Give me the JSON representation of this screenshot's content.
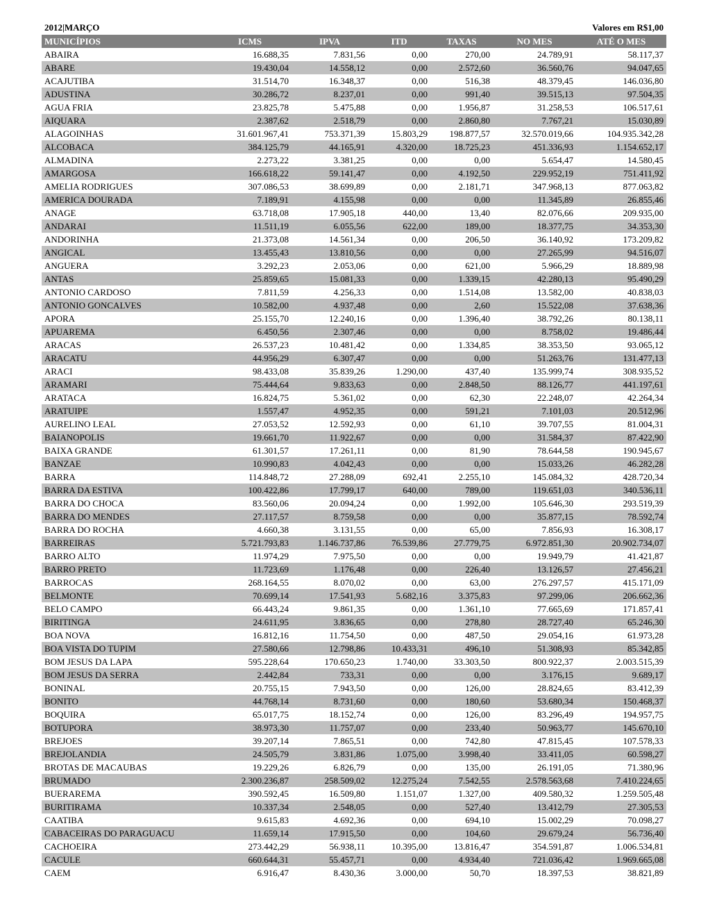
{
  "header": {
    "period": "2012|MARÇO",
    "currency": "Valores em R$1,00"
  },
  "columns": [
    {
      "key": "municipio",
      "label": "MUNICÍPIOS",
      "class": "mun"
    },
    {
      "key": "icms",
      "label": "ICMS",
      "class": "num"
    },
    {
      "key": "ipva",
      "label": "IPVA",
      "class": "num"
    },
    {
      "key": "itd",
      "label": "ITD",
      "class": "num"
    },
    {
      "key": "taxas",
      "label": "TAXAS",
      "class": "num"
    },
    {
      "key": "nomes",
      "label": "NO   MES",
      "class": "num"
    },
    {
      "key": "ate",
      "label": "ATÉ O MES",
      "class": "num"
    }
  ],
  "style": {
    "header_bg": "#808080",
    "header_fg": "#ffffff",
    "row_alt_bg": "#c0c0c0",
    "row_bg": "#ffffff",
    "font_family": "Times New Roman",
    "font_size_pt": 10
  },
  "rows": [
    [
      "ABAIRA",
      "16.688,35",
      "7.831,56",
      "0,00",
      "270,00",
      "24.789,91",
      "58.117,37"
    ],
    [
      "ABARE",
      "19.430,04",
      "14.558,12",
      "0,00",
      "2.572,60",
      "36.560,76",
      "94.047,65"
    ],
    [
      "ACAJUTIBA",
      "31.514,70",
      "16.348,37",
      "0,00",
      "516,38",
      "48.379,45",
      "146.036,80"
    ],
    [
      "ADUSTINA",
      "30.286,72",
      "8.237,01",
      "0,00",
      "991,40",
      "39.515,13",
      "97.504,35"
    ],
    [
      "AGUA FRIA",
      "23.825,78",
      "5.475,88",
      "0,00",
      "1.956,87",
      "31.258,53",
      "106.517,61"
    ],
    [
      "AIQUARA",
      "2.387,62",
      "2.518,79",
      "0,00",
      "2.860,80",
      "7.767,21",
      "15.030,89"
    ],
    [
      "ALAGOINHAS",
      "31.601.967,41",
      "753.371,39",
      "15.803,29",
      "198.877,57",
      "32.570.019,66",
      "104.935.342,28"
    ],
    [
      "ALCOBACA",
      "384.125,79",
      "44.165,91",
      "4.320,00",
      "18.725,23",
      "451.336,93",
      "1.154.652,17"
    ],
    [
      "ALMADINA",
      "2.273,22",
      "3.381,25",
      "0,00",
      "0,00",
      "5.654,47",
      "14.580,45"
    ],
    [
      "AMARGOSA",
      "166.618,22",
      "59.141,47",
      "0,00",
      "4.192,50",
      "229.952,19",
      "751.411,92"
    ],
    [
      "AMELIA RODRIGUES",
      "307.086,53",
      "38.699,89",
      "0,00",
      "2.181,71",
      "347.968,13",
      "877.063,82"
    ],
    [
      "AMERICA DOURADA",
      "7.189,91",
      "4.155,98",
      "0,00",
      "0,00",
      "11.345,89",
      "26.855,46"
    ],
    [
      "ANAGE",
      "63.718,08",
      "17.905,18",
      "440,00",
      "13,40",
      "82.076,66",
      "209.935,00"
    ],
    [
      "ANDARAI",
      "11.511,19",
      "6.055,56",
      "622,00",
      "189,00",
      "18.377,75",
      "34.353,30"
    ],
    [
      "ANDORINHA",
      "21.373,08",
      "14.561,34",
      "0,00",
      "206,50",
      "36.140,92",
      "173.209,82"
    ],
    [
      "ANGICAL",
      "13.455,43",
      "13.810,56",
      "0,00",
      "0,00",
      "27.265,99",
      "94.516,07"
    ],
    [
      "ANGUERA",
      "3.292,23",
      "2.053,06",
      "0,00",
      "621,00",
      "5.966,29",
      "18.889,98"
    ],
    [
      "ANTAS",
      "25.859,65",
      "15.081,33",
      "0,00",
      "1.339,15",
      "42.280,13",
      "95.490,29"
    ],
    [
      "ANTONIO CARDOSO",
      "7.811,59",
      "4.256,33",
      "0,00",
      "1.514,08",
      "13.582,00",
      "40.838,03"
    ],
    [
      "ANTONIO GONCALVES",
      "10.582,00",
      "4.937,48",
      "0,00",
      "2,60",
      "15.522,08",
      "37.638,36"
    ],
    [
      "APORA",
      "25.155,70",
      "12.240,16",
      "0,00",
      "1.396,40",
      "38.792,26",
      "80.138,11"
    ],
    [
      "APUAREMA",
      "6.450,56",
      "2.307,46",
      "0,00",
      "0,00",
      "8.758,02",
      "19.486,44"
    ],
    [
      "ARACAS",
      "26.537,23",
      "10.481,42",
      "0,00",
      "1.334,85",
      "38.353,50",
      "93.065,12"
    ],
    [
      "ARACATU",
      "44.956,29",
      "6.307,47",
      "0,00",
      "0,00",
      "51.263,76",
      "131.477,13"
    ],
    [
      "ARACI",
      "98.433,08",
      "35.839,26",
      "1.290,00",
      "437,40",
      "135.999,74",
      "308.935,52"
    ],
    [
      "ARAMARI",
      "75.444,64",
      "9.833,63",
      "0,00",
      "2.848,50",
      "88.126,77",
      "441.197,61"
    ],
    [
      "ARATACA",
      "16.824,75",
      "5.361,02",
      "0,00",
      "62,30",
      "22.248,07",
      "42.264,34"
    ],
    [
      "ARATUIPE",
      "1.557,47",
      "4.952,35",
      "0,00",
      "591,21",
      "7.101,03",
      "20.512,96"
    ],
    [
      "AURELINO LEAL",
      "27.053,52",
      "12.592,93",
      "0,00",
      "61,10",
      "39.707,55",
      "81.004,31"
    ],
    [
      "BAIANOPOLIS",
      "19.661,70",
      "11.922,67",
      "0,00",
      "0,00",
      "31.584,37",
      "87.422,90"
    ],
    [
      "BAIXA GRANDE",
      "61.301,57",
      "17.261,11",
      "0,00",
      "81,90",
      "78.644,58",
      "190.945,67"
    ],
    [
      "BANZAE",
      "10.990,83",
      "4.042,43",
      "0,00",
      "0,00",
      "15.033,26",
      "46.282,28"
    ],
    [
      "BARRA",
      "114.848,72",
      "27.288,09",
      "692,41",
      "2.255,10",
      "145.084,32",
      "428.720,34"
    ],
    [
      "BARRA DA ESTIVA",
      "100.422,86",
      "17.799,17",
      "640,00",
      "789,00",
      "119.651,03",
      "340.536,11"
    ],
    [
      "BARRA DO CHOCA",
      "83.560,06",
      "20.094,24",
      "0,00",
      "1.992,00",
      "105.646,30",
      "293.519,39"
    ],
    [
      "BARRA DO MENDES",
      "27.117,57",
      "8.759,58",
      "0,00",
      "0,00",
      "35.877,15",
      "78.592,74"
    ],
    [
      "BARRA DO ROCHA",
      "4.660,38",
      "3.131,55",
      "0,00",
      "65,00",
      "7.856,93",
      "16.308,17"
    ],
    [
      "BARREIRAS",
      "5.721.793,83",
      "1.146.737,86",
      "76.539,86",
      "27.779,75",
      "6.972.851,30",
      "20.902.734,07"
    ],
    [
      "BARRO ALTO",
      "11.974,29",
      "7.975,50",
      "0,00",
      "0,00",
      "19.949,79",
      "41.421,87"
    ],
    [
      "BARRO PRETO",
      "11.723,69",
      "1.176,48",
      "0,00",
      "226,40",
      "13.126,57",
      "27.456,21"
    ],
    [
      "BARROCAS",
      "268.164,55",
      "8.070,02",
      "0,00",
      "63,00",
      "276.297,57",
      "415.171,09"
    ],
    [
      "BELMONTE",
      "70.699,14",
      "17.541,93",
      "5.682,16",
      "3.375,83",
      "97.299,06",
      "206.662,36"
    ],
    [
      "BELO CAMPO",
      "66.443,24",
      "9.861,35",
      "0,00",
      "1.361,10",
      "77.665,69",
      "171.857,41"
    ],
    [
      "BIRITINGA",
      "24.611,95",
      "3.836,65",
      "0,00",
      "278,80",
      "28.727,40",
      "65.246,30"
    ],
    [
      "BOA NOVA",
      "16.812,16",
      "11.754,50",
      "0,00",
      "487,50",
      "29.054,16",
      "61.973,28"
    ],
    [
      "BOA VISTA DO TUPIM",
      "27.580,66",
      "12.798,86",
      "10.433,31",
      "496,10",
      "51.308,93",
      "85.342,85"
    ],
    [
      "BOM JESUS DA LAPA",
      "595.228,64",
      "170.650,23",
      "1.740,00",
      "33.303,50",
      "800.922,37",
      "2.003.515,39"
    ],
    [
      "BOM JESUS DA SERRA",
      "2.442,84",
      "733,31",
      "0,00",
      "0,00",
      "3.176,15",
      "9.689,17"
    ],
    [
      "BONINAL",
      "20.755,15",
      "7.943,50",
      "0,00",
      "126,00",
      "28.824,65",
      "83.412,39"
    ],
    [
      "BONITO",
      "44.768,14",
      "8.731,60",
      "0,00",
      "180,60",
      "53.680,34",
      "150.468,37"
    ],
    [
      "BOQUIRA",
      "65.017,75",
      "18.152,74",
      "0,00",
      "126,00",
      "83.296,49",
      "194.957,75"
    ],
    [
      "BOTUPORA",
      "38.973,30",
      "11.757,07",
      "0,00",
      "233,40",
      "50.963,77",
      "145.670,10"
    ],
    [
      "BREJOES",
      "39.207,14",
      "7.865,51",
      "0,00",
      "742,80",
      "47.815,45",
      "107.578,33"
    ],
    [
      "BREJOLANDIA",
      "24.505,79",
      "3.831,86",
      "1.075,00",
      "3.998,40",
      "33.411,05",
      "60.598,27"
    ],
    [
      "BROTAS DE MACAUBAS",
      "19.229,26",
      "6.826,79",
      "0,00",
      "135,00",
      "26.191,05",
      "71.380,96"
    ],
    [
      "BRUMADO",
      "2.300.236,87",
      "258.509,02",
      "12.275,24",
      "7.542,55",
      "2.578.563,68",
      "7.410.224,65"
    ],
    [
      "BUERAREMA",
      "390.592,45",
      "16.509,80",
      "1.151,07",
      "1.327,00",
      "409.580,32",
      "1.259.505,48"
    ],
    [
      "BURITIRAMA",
      "10.337,34",
      "2.548,05",
      "0,00",
      "527,40",
      "13.412,79",
      "27.305,53"
    ],
    [
      "CAATIBA",
      "9.615,83",
      "4.692,36",
      "0,00",
      "694,10",
      "15.002,29",
      "70.098,27"
    ],
    [
      "CABACEIRAS DO PARAGUACU",
      "11.659,14",
      "17.915,50",
      "0,00",
      "104,60",
      "29.679,24",
      "56.736,40"
    ],
    [
      "CACHOEIRA",
      "273.442,29",
      "56.938,11",
      "10.395,00",
      "13.816,47",
      "354.591,87",
      "1.006.534,81"
    ],
    [
      "CACULE",
      "660.644,31",
      "55.457,71",
      "0,00",
      "4.934,40",
      "721.036,42",
      "1.969.665,08"
    ],
    [
      "CAEM",
      "6.916,47",
      "8.430,36",
      "3.000,00",
      "50,70",
      "18.397,53",
      "38.821,89"
    ]
  ]
}
